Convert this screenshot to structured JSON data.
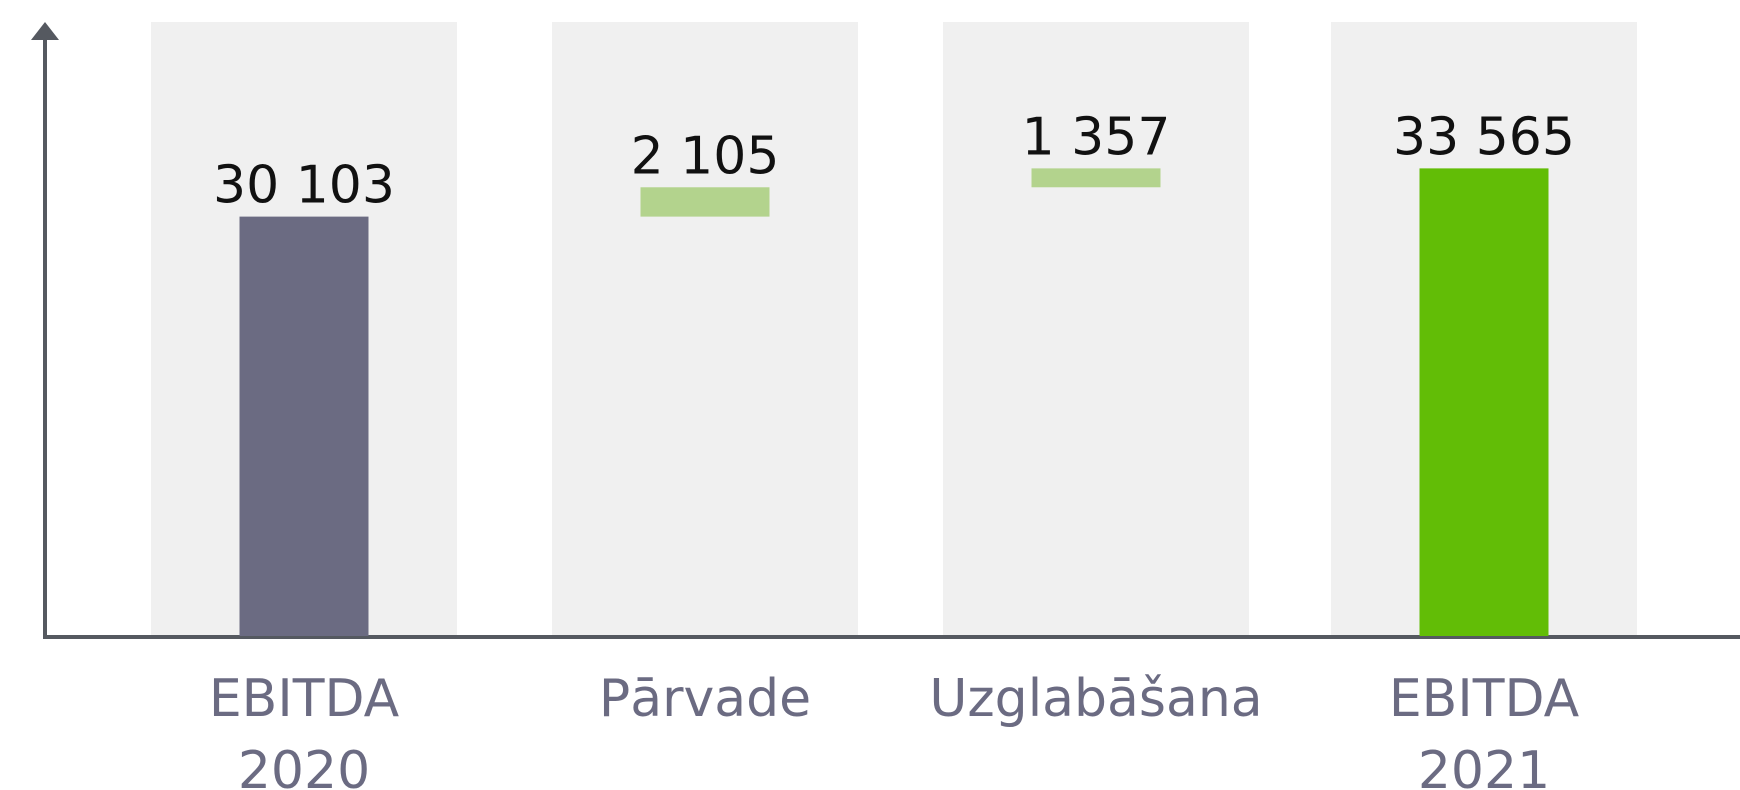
{
  "chart_data": {
    "type": "waterfall",
    "categories": [
      [
        "EBITDA",
        "2020"
      ],
      [
        "Pārvade"
      ],
      [
        "Uzglabāšana"
      ],
      [
        "EBITDA",
        "2021"
      ]
    ],
    "values": [
      30103,
      2105,
      1357,
      33565
    ],
    "value_labels": [
      "30 103",
      "2 105",
      "1 357",
      "33 565"
    ],
    "kinds": [
      "total",
      "increase",
      "increase",
      "total"
    ],
    "colors": [
      "#6b6b82",
      "#b3d38d",
      "#b3d38d",
      "#62bd06"
    ],
    "ylim": [
      0,
      44000
    ]
  }
}
